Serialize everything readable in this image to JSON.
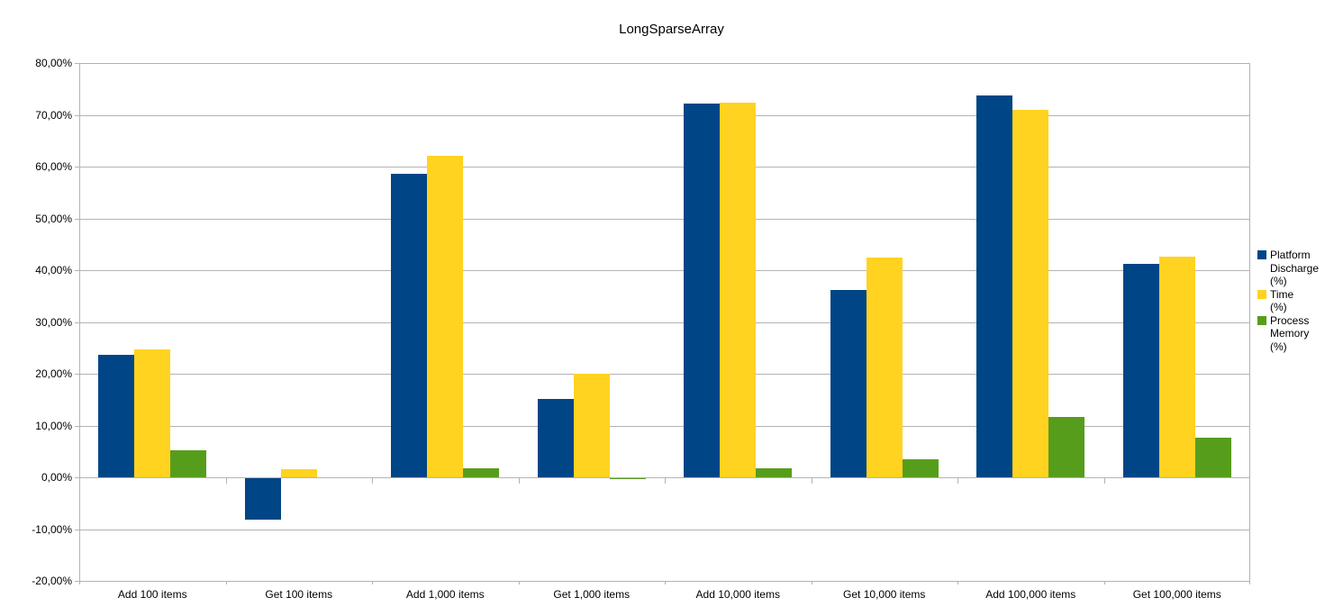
{
  "chart_data": {
    "type": "bar",
    "title": "LongSparseArray",
    "categories": [
      "Add 100 items",
      "Get 100 items",
      "Add 1,000 items",
      "Get 1,000 items",
      "Add 10,000 items",
      "Get 10,000 items",
      "Add 100,000 items",
      "Get 100,000 items"
    ],
    "series": [
      {
        "name": "Platform Discharge (%)",
        "legend_lines": [
          "Platform",
          "Discharge",
          "(%)"
        ],
        "color": "#004586",
        "values": [
          23.6,
          -8.1,
          58.6,
          15.2,
          72.2,
          36.1,
          73.8,
          41.3
        ]
      },
      {
        "name": "Time (%)",
        "legend_lines": [
          "Time",
          "(%)"
        ],
        "color": "#FFD320",
        "values": [
          24.7,
          1.5,
          62.1,
          20.0,
          72.4,
          42.5,
          71.0,
          42.6
        ]
      },
      {
        "name": "Process Memory (%)",
        "legend_lines": [
          "Process",
          "Memory",
          "(%)"
        ],
        "color": "#579D1C",
        "values": [
          5.3,
          0.0,
          1.8,
          -0.3,
          1.8,
          3.4,
          11.6,
          7.7
        ]
      }
    ],
    "ylim": [
      -20,
      80
    ],
    "ytick_step": 10,
    "y_tick_labels": [
      "80,00%",
      "70,00%",
      "60,00%",
      "50,00%",
      "40,00%",
      "30,00%",
      "20,00%",
      "10,00%",
      "0,00%",
      "-10,00%",
      "-20,00%"
    ],
    "grid": true,
    "legend_position": "right"
  },
  "colors": {
    "grid": "#b3b3b3",
    "axis": "#b3b3b3",
    "background": "#ffffff",
    "text": "#000000"
  }
}
